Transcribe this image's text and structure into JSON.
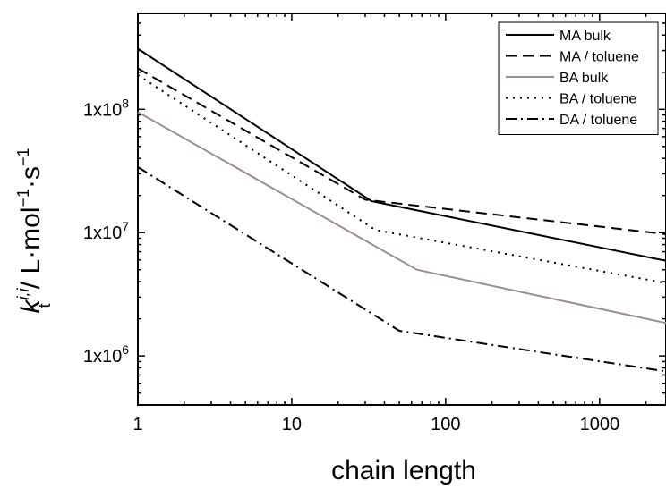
{
  "chart_data": {
    "type": "line",
    "xlabel": "chain length",
    "ylabel": {
      "base": "k",
      "superscript": "i,i",
      "subscript": "t",
      "unit_prefix": " / L·mol",
      "exp1": "−1",
      "unit_mid": "·s",
      "exp2": "−1"
    },
    "x_scale": "log",
    "y_scale": "log",
    "xlim": [
      1,
      2700
    ],
    "ylim": [
      400000,
      600000000
    ],
    "x_ticks": [
      {
        "value": 1,
        "label": "1"
      },
      {
        "value": 10,
        "label": "10"
      },
      {
        "value": 100,
        "label": "100"
      },
      {
        "value": 1000,
        "label": "1000"
      }
    ],
    "y_ticks": [
      {
        "value": 1000000,
        "label": "1x10",
        "exp": "6"
      },
      {
        "value": 10000000,
        "label": "1x10",
        "exp": "7"
      },
      {
        "value": 100000000,
        "label": "1x10",
        "exp": "8"
      }
    ],
    "legend_position": "top-right",
    "series": [
      {
        "name": "MA bulk",
        "color": "#000000",
        "dash": "none",
        "points": [
          [
            1,
            310000000
          ],
          [
            33,
            18000000
          ],
          [
            2700,
            5900000
          ]
        ]
      },
      {
        "name": "MA / toluene",
        "color": "#000000",
        "dash": "12,7",
        "points": [
          [
            1,
            215000000
          ],
          [
            30,
            18500000
          ],
          [
            2700,
            9700000
          ]
        ]
      },
      {
        "name": "BA bulk",
        "color": "#9b8f8d",
        "dash": "none",
        "points": [
          [
            1,
            95000000
          ],
          [
            65,
            5000000
          ],
          [
            2700,
            1850000
          ]
        ]
      },
      {
        "name": "BA / toluene",
        "color": "#000000",
        "dash": "2,6",
        "points": [
          [
            1,
            190000000
          ],
          [
            35,
            10500000
          ],
          [
            2700,
            3900000
          ]
        ]
      },
      {
        "name": "DA / toluene",
        "color": "#000000",
        "dash": "12,5,2,5",
        "points": [
          [
            1,
            34000000
          ],
          [
            50,
            1600000
          ],
          [
            2700,
            750000
          ]
        ]
      }
    ]
  }
}
